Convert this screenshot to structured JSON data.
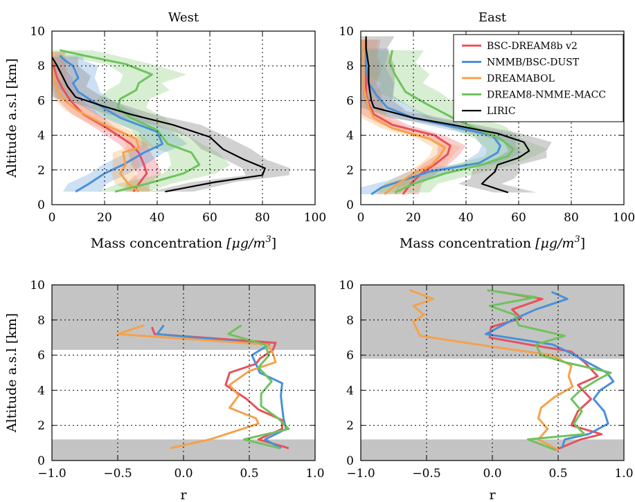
{
  "colors": {
    "BSC-DREAM8b v2": "#e8505b",
    "NMMB/BSC-DUST": "#4a90d9",
    "DREAMABOL": "#f6a14a",
    "DREAM8-NMME-MACC": "#6ec35c",
    "LIRIC": "#000000",
    "shade_gray": "#c4c4c4"
  },
  "legend": [
    "BSC-DREAM8b v2",
    "NMMB/BSC-DUST",
    "DREAMABOL",
    "DREAM8-NMME-MACC",
    "LIRIC"
  ],
  "chart_data": [
    {
      "id": "west_mass",
      "type": "line",
      "title": "West",
      "xlabel_pre": "Mass concentration ",
      "xlabel_math": "[μg/m",
      "xlabel_sup": "3",
      "xlabel_post": "]",
      "ylabel": "Altitude a.s.l [km]",
      "xlim": [
        0,
        100
      ],
      "ylim": [
        0,
        10
      ],
      "xticks": [
        "0",
        "20",
        "40",
        "60",
        "80",
        "100"
      ],
      "yticks": [
        "0",
        "2",
        "4",
        "6",
        "8",
        "10"
      ],
      "grid": true,
      "series": [
        {
          "name": "BSC-DREAM8b v2",
          "x": [
            31,
            33,
            36,
            35,
            33,
            30,
            20,
            12,
            7,
            4,
            2,
            1,
            0,
            0,
            0
          ],
          "y": [
            0.75,
            1.2,
            1.8,
            2.3,
            3.0,
            3.5,
            4.5,
            5.2,
            6.0,
            6.7,
            7.3,
            7.8,
            8.3,
            8.6,
            8.8
          ]
        },
        {
          "name": "NMMB/BSC-DUST",
          "x": [
            9,
            14,
            20,
            27,
            35,
            42,
            40,
            26,
            15,
            10,
            8,
            10,
            8,
            5,
            3
          ],
          "y": [
            0.75,
            1.2,
            1.8,
            2.3,
            3.0,
            3.5,
            4.2,
            5.0,
            6.0,
            6.5,
            7.0,
            7.3,
            8.0,
            8.3,
            8.6
          ]
        },
        {
          "name": "DREAMABOL",
          "x": [
            33,
            29,
            26,
            28,
            27,
            33,
            32,
            20,
            10,
            5,
            2,
            1,
            0,
            0,
            0
          ],
          "y": [
            0.75,
            1.2,
            1.8,
            2.3,
            3.0,
            3.3,
            3.8,
            4.6,
            5.4,
            6.0,
            6.6,
            7.2,
            7.8,
            8.3,
            8.8
          ]
        },
        {
          "name": "DREAM8-NMME-MACC",
          "x": [
            24,
            36,
            50,
            56,
            53,
            44,
            40,
            30,
            25,
            26,
            32,
            33,
            38,
            28,
            12,
            3
          ],
          "y": [
            0.75,
            1.2,
            1.8,
            2.3,
            3.0,
            3.5,
            4.3,
            5.0,
            5.6,
            6.1,
            6.6,
            7.0,
            7.5,
            8.1,
            8.6,
            8.9
          ]
        },
        {
          "name": "LIRIC",
          "x": [
            43,
            62,
            80,
            81,
            73,
            65,
            60,
            46,
            30,
            19,
            9,
            6,
            4,
            2,
            0
          ],
          "y": [
            0.75,
            1.3,
            1.7,
            2.1,
            2.6,
            3.2,
            3.9,
            4.6,
            5.2,
            5.7,
            6.2,
            6.8,
            7.4,
            8.0,
            8.5
          ]
        }
      ]
    },
    {
      "id": "east_mass",
      "type": "line",
      "title": "East",
      "xlabel_pre": "Mass concentration ",
      "xlabel_math": "[μg/m",
      "xlabel_sup": "3",
      "xlabel_post": "]",
      "ylabel": "",
      "xlim": [
        0,
        100
      ],
      "ylim": [
        0,
        10
      ],
      "xticks": [
        "0",
        "20",
        "40",
        "60",
        "80",
        "100"
      ],
      "yticks": [
        "0",
        "2",
        "4",
        "6",
        "8",
        "10"
      ],
      "grid": true,
      "series": [
        {
          "name": "BSC-DREAM8b v2",
          "x": [
            16,
            19,
            23,
            28,
            33,
            34,
            28,
            12,
            5,
            3,
            2,
            2,
            2,
            2,
            2
          ],
          "y": [
            0.6,
            1.2,
            1.8,
            2.3,
            2.9,
            3.4,
            4.0,
            4.6,
            5.2,
            5.8,
            6.4,
            7.0,
            7.8,
            8.6,
            9.5
          ]
        },
        {
          "name": "NMMB/BSC-DUST",
          "x": [
            4,
            8,
            16,
            26,
            45,
            52,
            53,
            50,
            35,
            20,
            10,
            6,
            3,
            2,
            2
          ],
          "y": [
            0.6,
            1.0,
            1.4,
            1.9,
            2.4,
            3.0,
            3.4,
            4.0,
            4.5,
            5.0,
            5.6,
            6.3,
            7.0,
            8.0,
            9.0
          ]
        },
        {
          "name": "DREAMABOL",
          "x": [
            9,
            14,
            20,
            27,
            30,
            32,
            26,
            12,
            5,
            3,
            2,
            1,
            1,
            1,
            1
          ],
          "y": [
            0.6,
            1.2,
            1.8,
            2.3,
            2.8,
            3.3,
            3.8,
            4.4,
            5.0,
            5.6,
            6.2,
            6.8,
            7.5,
            8.3,
            9.5
          ]
        },
        {
          "name": "DREAM8-NMME-MACC",
          "x": [
            13,
            20,
            32,
            46,
            56,
            58,
            53,
            42,
            35,
            25,
            17,
            15,
            13,
            11,
            12
          ],
          "y": [
            0.7,
            1.2,
            1.8,
            2.3,
            2.8,
            3.2,
            3.8,
            4.5,
            5.0,
            5.8,
            6.5,
            7.0,
            7.5,
            8.2,
            8.9
          ]
        },
        {
          "name": "LIRIC",
          "x": [
            56,
            46,
            48,
            51,
            52,
            60,
            64,
            62,
            52,
            35,
            20,
            10,
            5,
            4,
            3,
            3,
            2,
            2
          ],
          "y": [
            0.7,
            1.2,
            1.5,
            1.9,
            2.3,
            2.7,
            3.1,
            3.6,
            4.1,
            4.6,
            5.0,
            5.4,
            5.6,
            6.0,
            7.0,
            8.0,
            9.0,
            9.7
          ]
        }
      ]
    },
    {
      "id": "west_r",
      "type": "line",
      "title": "",
      "xlabel": "r",
      "ylabel": "Altitude a.s.l [km]",
      "xlim": [
        -1.0,
        1.0
      ],
      "ylim": [
        0,
        10
      ],
      "xticks": [
        "−1.0",
        "−0.5",
        "0.0",
        "0.5",
        "1.0"
      ],
      "yticks": [
        "0",
        "2",
        "4",
        "6",
        "8",
        "10"
      ],
      "grid": true,
      "shaded_bands": [
        [
          0,
          1.2
        ],
        [
          6.3,
          10
        ]
      ],
      "series": [
        {
          "name": "BSC-DREAM8b v2",
          "x": [
            0.8,
            0.57,
            0.75,
            0.75,
            0.57,
            0.48,
            0.32,
            0.35,
            0.55,
            0.58,
            0.68,
            0.7,
            -0.22,
            -0.24
          ],
          "y": [
            0.7,
            1.2,
            1.8,
            2.3,
            2.9,
            3.5,
            4.3,
            5.0,
            5.5,
            5.8,
            6.3,
            6.7,
            7.2,
            7.6
          ]
        },
        {
          "name": "NMMB/BSC-DUST",
          "x": [
            0.74,
            0.62,
            0.78,
            0.76,
            0.75,
            0.74,
            0.75,
            0.58,
            0.52,
            0.65,
            -0.2,
            -0.15
          ],
          "y": [
            0.7,
            1.2,
            1.8,
            2.4,
            3.0,
            3.7,
            4.4,
            5.0,
            6.0,
            6.6,
            7.2,
            7.7
          ]
        },
        {
          "name": "DREAMABOL",
          "x": [
            -0.1,
            0.2,
            0.57,
            0.55,
            0.35,
            0.42,
            0.35,
            0.5,
            0.7,
            0.68,
            0.64,
            -0.5,
            -0.3
          ],
          "y": [
            0.7,
            1.2,
            2.1,
            2.4,
            3.0,
            3.7,
            4.3,
            5.1,
            5.6,
            6.1,
            6.6,
            7.2,
            7.7
          ]
        },
        {
          "name": "DREAM8-NMME-MACC",
          "x": [
            0.73,
            0.46,
            0.8,
            0.72,
            0.59,
            0.59,
            0.67,
            0.57,
            0.65,
            0.62,
            0.34,
            0.44
          ],
          "y": [
            0.7,
            1.2,
            1.8,
            2.4,
            3.1,
            3.8,
            4.5,
            5.3,
            6.0,
            6.6,
            7.2,
            7.7
          ]
        }
      ]
    },
    {
      "id": "east_r",
      "type": "line",
      "title": "",
      "xlabel": "r",
      "ylabel": "",
      "xlim": [
        -1.0,
        1.0
      ],
      "ylim": [
        0,
        10
      ],
      "xticks": [
        "−1.0",
        "−0.5",
        "0.0",
        "0.5",
        "1.0"
      ],
      "yticks": [
        "0",
        "2",
        "4",
        "6",
        "8",
        "10"
      ],
      "grid": true,
      "shaded_bands": [
        [
          0,
          1.2
        ],
        [
          5.8,
          10
        ]
      ],
      "series": [
        {
          "name": "BSC-DREAM8b v2",
          "x": [
            0.48,
            0.67,
            0.83,
            0.6,
            0.65,
            0.75,
            0.65,
            0.8,
            0.7,
            0.6,
            0.28,
            -0.02,
            -0.01,
            0.22,
            0.15,
            0.38,
            0.05
          ],
          "y": [
            0.6,
            1.2,
            1.5,
            2.0,
            2.8,
            3.5,
            4.3,
            4.8,
            5.6,
            6.2,
            6.6,
            7.0,
            7.6,
            8.1,
            8.6,
            9.2,
            9.6
          ]
        },
        {
          "name": "NMMB/BSC-DUST",
          "x": [
            0.53,
            0.55,
            0.73,
            0.88,
            0.85,
            0.77,
            0.82,
            0.92,
            0.87,
            0.72,
            0.6,
            0.46,
            -0.05,
            0.18,
            0.33,
            0.57,
            0.45
          ],
          "y": [
            0.7,
            1.2,
            1.5,
            2.1,
            2.8,
            3.5,
            4.0,
            4.5,
            5.0,
            5.6,
            6.1,
            6.6,
            7.2,
            8.1,
            8.6,
            9.2,
            9.6
          ]
        },
        {
          "name": "DREAMABOL",
          "x": [
            0.5,
            0.35,
            0.42,
            0.35,
            0.37,
            0.47,
            0.61,
            0.58,
            0.6,
            0.45,
            -0.02,
            -0.55,
            -0.6,
            -0.52,
            -0.6,
            -0.45,
            -0.63
          ],
          "y": [
            0.6,
            1.2,
            1.8,
            2.4,
            3.0,
            3.6,
            4.2,
            4.8,
            5.4,
            6.0,
            6.5,
            7.1,
            7.9,
            8.3,
            8.8,
            9.2,
            9.7
          ]
        },
        {
          "name": "DREAM8-NMME-MACC",
          "x": [
            0.48,
            0.27,
            0.7,
            0.62,
            0.68,
            0.6,
            0.67,
            0.8,
            0.9,
            0.55,
            0.37,
            0.33,
            0.55,
            0.2,
            0.17,
            -0.02,
            0.33,
            -0.04
          ],
          "y": [
            0.6,
            1.2,
            1.5,
            2.1,
            2.8,
            3.5,
            4.0,
            4.6,
            5.0,
            5.6,
            6.0,
            6.6,
            7.1,
            7.7,
            8.3,
            8.8,
            9.3,
            9.7
          ]
        }
      ]
    }
  ]
}
